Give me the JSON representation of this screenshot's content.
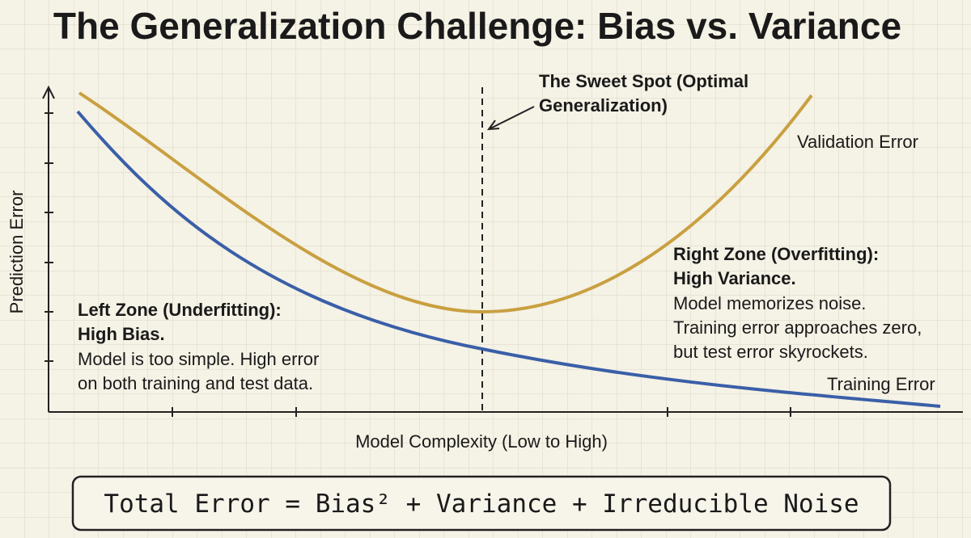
{
  "header": {
    "title": "The Generalization Challenge: Bias vs. Variance"
  },
  "axes": {
    "x_label": "Model Complexity (Low to High)",
    "y_label": "Prediction Error"
  },
  "curves": {
    "validation": "Validation Error",
    "training": "Training Error"
  },
  "sweet_spot": {
    "lines": [
      "The Sweet Spot (Optimal",
      "Generalization)"
    ]
  },
  "left_zone": {
    "heading": [
      "Left Zone (Underfitting):",
      "High Bias."
    ],
    "body": [
      "Model is too simple. High error",
      "on both training and test data."
    ]
  },
  "right_zone": {
    "heading": [
      "Right Zone (Overfitting):",
      "High Variance."
    ],
    "body": [
      "Model memorizes noise.",
      "Training error approaches zero,",
      "but test error skyrockets."
    ]
  },
  "formula": "Total Error = Bias² + Variance + Irreducible Noise"
}
